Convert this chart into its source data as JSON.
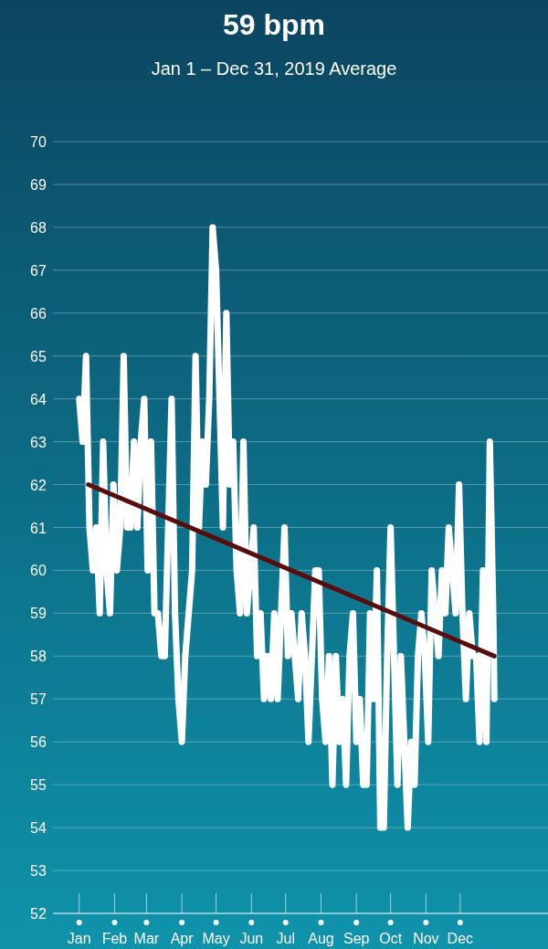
{
  "chart_data": {
    "type": "line",
    "title": "59 bpm",
    "subtitle": "Jan 1 – Dec 31, 2019 Average",
    "x": [
      "2019-01-01",
      "2019-01-04",
      "2019-01-07",
      "2019-01-10",
      "2019-01-13",
      "2019-01-16",
      "2019-01-19",
      "2019-01-22",
      "2019-01-25",
      "2019-01-28",
      "2019-01-31",
      "2019-02-03",
      "2019-02-06",
      "2019-02-09",
      "2019-02-12",
      "2019-02-15",
      "2019-02-18",
      "2019-02-21",
      "2019-02-24",
      "2019-02-27",
      "2019-03-02",
      "2019-03-05",
      "2019-03-08",
      "2019-03-11",
      "2019-03-14",
      "2019-03-17",
      "2019-03-20",
      "2019-03-23",
      "2019-03-26",
      "2019-03-29",
      "2019-04-01",
      "2019-04-04",
      "2019-04-07",
      "2019-04-10",
      "2019-04-13",
      "2019-04-16",
      "2019-04-19",
      "2019-04-22",
      "2019-04-25",
      "2019-04-28",
      "2019-05-01",
      "2019-05-04",
      "2019-05-07",
      "2019-05-10",
      "2019-05-13",
      "2019-05-16",
      "2019-05-19",
      "2019-05-22",
      "2019-05-25",
      "2019-05-28",
      "2019-05-31",
      "2019-06-03",
      "2019-06-06",
      "2019-06-09",
      "2019-06-12",
      "2019-06-15",
      "2019-06-18",
      "2019-06-21",
      "2019-06-24",
      "2019-06-27",
      "2019-06-30",
      "2019-07-03",
      "2019-07-06",
      "2019-07-09",
      "2019-07-12",
      "2019-07-15",
      "2019-07-18",
      "2019-07-21",
      "2019-07-24",
      "2019-07-27",
      "2019-07-30",
      "2019-08-02",
      "2019-08-05",
      "2019-08-08",
      "2019-08-11",
      "2019-08-14",
      "2019-08-17",
      "2019-08-20",
      "2019-08-23",
      "2019-08-26",
      "2019-08-29",
      "2019-09-01",
      "2019-09-04",
      "2019-09-07",
      "2019-09-10",
      "2019-09-13",
      "2019-09-16",
      "2019-09-19",
      "2019-09-22",
      "2019-09-25",
      "2019-09-28",
      "2019-10-01",
      "2019-10-04",
      "2019-10-07",
      "2019-10-10",
      "2019-10-13",
      "2019-10-16",
      "2019-10-19",
      "2019-10-22",
      "2019-10-25",
      "2019-10-28",
      "2019-10-31",
      "2019-11-03",
      "2019-11-06",
      "2019-11-09",
      "2019-11-12",
      "2019-11-15",
      "2019-11-18",
      "2019-11-21",
      "2019-11-24",
      "2019-11-27",
      "2019-11-30",
      "2019-12-03",
      "2019-12-06",
      "2019-12-09",
      "2019-12-12",
      "2019-12-15",
      "2019-12-18",
      "2019-12-21",
      "2019-12-24",
      "2019-12-27",
      "2019-12-30",
      "2019-12-31"
    ],
    "series": [
      {
        "color": "#ffffff",
        "values": [
          64,
          63,
          65,
          61,
          60,
          61,
          59,
          63,
          60,
          59,
          62,
          60,
          61,
          65,
          61,
          61,
          63,
          61,
          63,
          64,
          60,
          63,
          59,
          59,
          58,
          58,
          61,
          64,
          59,
          57,
          56,
          58,
          59,
          60,
          65,
          61,
          63,
          62,
          64,
          68,
          67,
          64,
          61,
          66,
          62,
          63,
          60,
          59,
          63,
          59,
          60,
          61,
          58,
          59,
          57,
          58,
          57,
          59,
          57,
          59,
          61,
          58,
          59,
          58,
          57,
          59,
          58,
          56,
          58,
          60,
          60,
          57,
          56,
          58,
          55,
          58,
          56,
          57,
          55,
          58,
          59,
          56,
          57,
          55,
          55,
          59,
          57,
          60,
          54,
          54,
          58,
          61,
          58,
          55,
          58,
          56,
          54,
          56,
          55,
          58,
          59,
          58,
          56,
          60,
          59,
          58,
          60,
          59,
          61,
          60,
          59,
          62,
          59,
          57,
          59,
          58,
          58,
          56,
          60,
          56,
          63,
          59,
          57
        ]
      },
      {
        "type": "line",
        "color": "#5a0c0c",
        "x": [
          "2019-01-09",
          "2019-12-31"
        ],
        "values": [
          62,
          58
        ]
      }
    ],
    "xlim": [
      "2018-12-09",
      "2020-02-16"
    ],
    "xticks": [
      {
        "value": "2019-01-01",
        "label": "Jan"
      },
      {
        "value": "2019-02-01",
        "label": "Feb"
      },
      {
        "value": "2019-03-01",
        "label": "Mar"
      },
      {
        "value": "2019-04-01",
        "label": "Apr"
      },
      {
        "value": "2019-05-01",
        "label": "May"
      },
      {
        "value": "2019-06-01",
        "label": "Jun"
      },
      {
        "value": "2019-07-01",
        "label": "Jul"
      },
      {
        "value": "2019-08-01",
        "label": "Aug"
      },
      {
        "value": "2019-09-01",
        "label": "Sep"
      },
      {
        "value": "2019-10-01",
        "label": "Oct"
      },
      {
        "value": "2019-11-01",
        "label": "Nov"
      },
      {
        "value": "2019-12-01",
        "label": "Dec"
      }
    ],
    "ylim": [
      52,
      70
    ],
    "yticks": [
      52,
      53,
      54,
      55,
      56,
      57,
      58,
      59,
      60,
      61,
      62,
      63,
      64,
      65,
      66,
      67,
      68,
      69,
      70
    ],
    "grid": "y",
    "marker": "none",
    "line_style": "solid"
  }
}
